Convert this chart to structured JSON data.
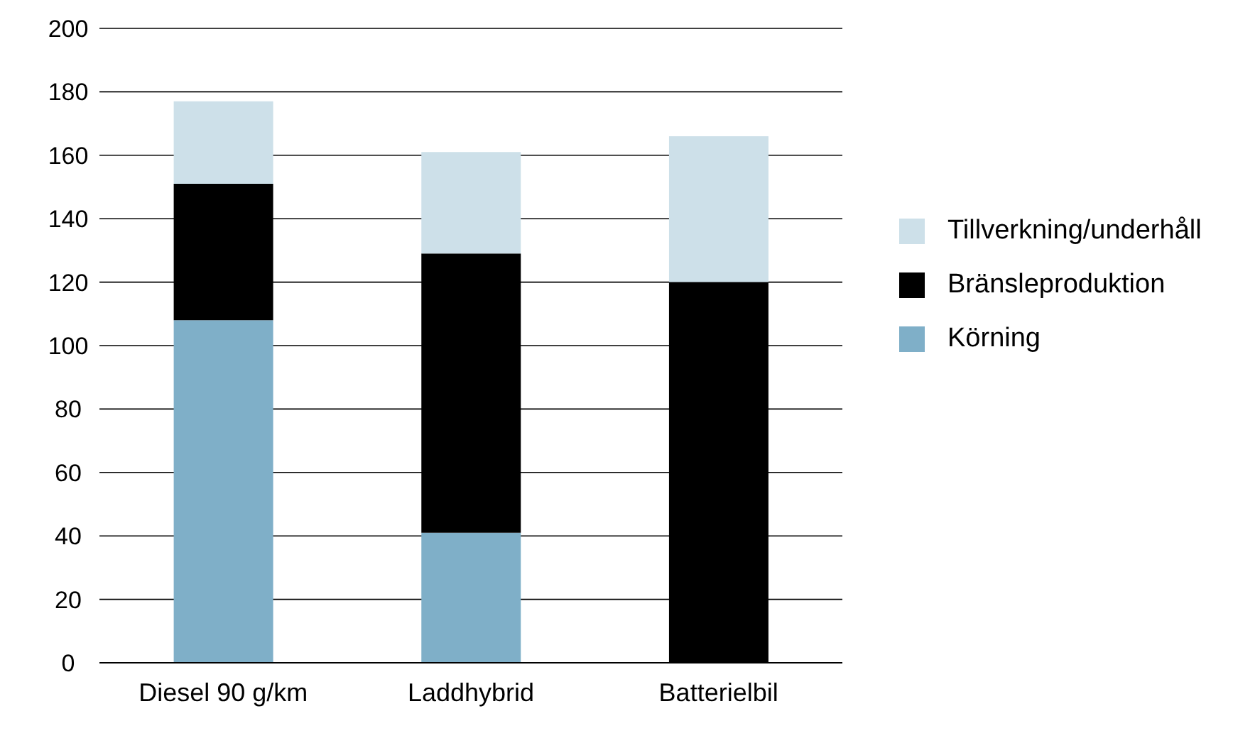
{
  "chart_data": {
    "type": "bar",
    "stacked": true,
    "categories": [
      "Diesel 90 g/km",
      "Laddhybrid",
      "Batterielbil"
    ],
    "series": [
      {
        "name": "Körning",
        "color": "#7fafc8",
        "values": [
          108,
          41,
          0
        ]
      },
      {
        "name": "Bränsleproduktion",
        "color": "#000000",
        "values": [
          43,
          88,
          120
        ]
      },
      {
        "name": "Tillverkning/underhåll",
        "color": "#cde0e9",
        "values": [
          26,
          32,
          46
        ]
      }
    ],
    "ylim": [
      0,
      200
    ],
    "yticks": [
      0,
      20,
      40,
      60,
      80,
      100,
      120,
      140,
      160,
      180,
      200
    ],
    "grid": "y",
    "legend": "right"
  }
}
